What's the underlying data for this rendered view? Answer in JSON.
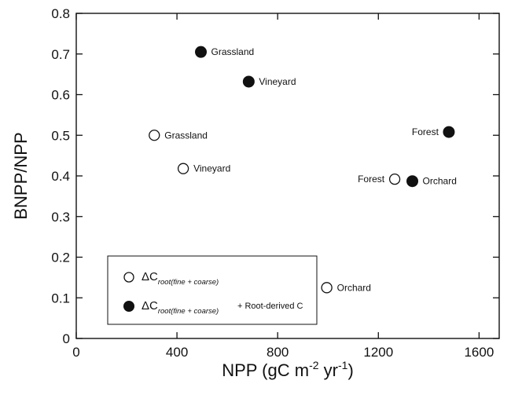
{
  "chart_data": {
    "type": "scatter",
    "xlabel": {
      "base": "NPP (gC m",
      "sup1": "-2",
      "mid": " yr",
      "sup2": "-1",
      "end": ")"
    },
    "ylabel": "BNPP/NPP",
    "xlim": [
      0,
      1680
    ],
    "ylim": [
      0,
      0.8
    ],
    "xticks": [
      0,
      400,
      800,
      1200,
      1600
    ],
    "yticks": [
      0,
      0.1,
      0.2,
      0.3,
      0.4,
      0.5,
      0.6,
      0.7,
      0.8
    ],
    "xtick_labels": [
      "0",
      "400",
      "800",
      "1200",
      "1600"
    ],
    "ytick_labels": [
      "0",
      "0.1",
      "0.2",
      "0.3",
      "0.4",
      "0.5",
      "0.6",
      "0.7",
      "0.8"
    ],
    "grid": false,
    "legend_position": "bottom-left",
    "series": [
      {
        "legend_main": "ΔC",
        "legend_sub": "root(fine + coarse)",
        "legend_extra": "",
        "marker": "open-circle",
        "color": "#ffffff",
        "points": [
          {
            "label": "Grassland",
            "x": 310,
            "y": 0.5,
            "label_side": "right"
          },
          {
            "label": "Vineyard",
            "x": 425,
            "y": 0.418,
            "label_side": "right"
          },
          {
            "label": "Forest",
            "x": 1265,
            "y": 0.392,
            "label_side": "left"
          },
          {
            "label": "Orchard",
            "x": 995,
            "y": 0.125,
            "label_side": "right"
          }
        ]
      },
      {
        "legend_main": "ΔC",
        "legend_sub": "root(fine + coarse)",
        "legend_extra": "+ Root-derived C",
        "marker": "filled-circle",
        "color": "#111111",
        "points": [
          {
            "label": "Grassland",
            "x": 495,
            "y": 0.705,
            "label_side": "right"
          },
          {
            "label": "Vineyard",
            "x": 685,
            "y": 0.632,
            "label_side": "right"
          },
          {
            "label": "Forest",
            "x": 1480,
            "y": 0.508,
            "label_side": "left"
          },
          {
            "label": "Orchard",
            "x": 1335,
            "y": 0.387,
            "label_side": "right"
          }
        ]
      }
    ]
  }
}
